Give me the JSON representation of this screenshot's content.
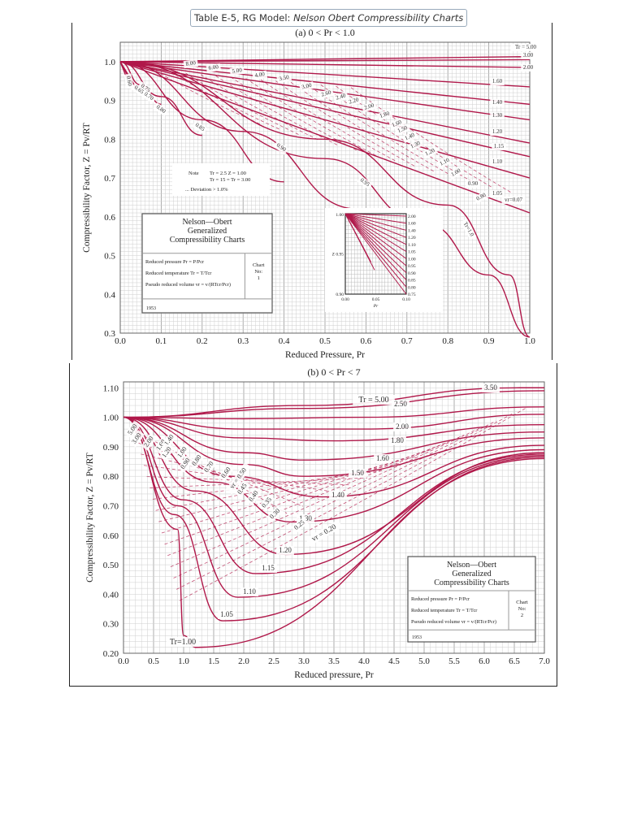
{
  "caption": {
    "prefix": "Table E-5, RG Model: ",
    "title": "Nelson Obert Compressibility Charts"
  },
  "colors": {
    "curve": "#b0184a",
    "grid_minor": "#cfcfcf",
    "grid_major": "#9a9a9a",
    "text": "#222222"
  },
  "chart_data": [
    {
      "type": "line",
      "title": "(a) 0 < Pr < 1.0",
      "xlabel": "Reduced Pressure, Pr",
      "ylabel": "Compressibility Factor, Z = Pv/RT",
      "xlim": [
        0.0,
        1.0
      ],
      "ylim": [
        0.3,
        1.05
      ],
      "xticks": [
        "0.0",
        "0.1",
        "0.2",
        "0.3",
        "0.4",
        "0.5",
        "0.6",
        "0.7",
        "0.8",
        "0.9",
        "1.0"
      ],
      "yticks": [
        "0.3",
        "0.4",
        "0.5",
        "0.6",
        "0.7",
        "0.8",
        "0.9",
        "1.0"
      ],
      "grid": true,
      "series_label": "Tr",
      "series": [
        {
          "name": "5.00",
          "x": [
            0,
            1.0
          ],
          "y": [
            1.0,
            1.013
          ]
        },
        {
          "name": "3.00",
          "x": [
            0,
            1.0
          ],
          "y": [
            1.0,
            1.005
          ]
        },
        {
          "name": "2.00",
          "x": [
            0,
            1.0
          ],
          "y": [
            1.0,
            0.985
          ]
        },
        {
          "name": "1.60",
          "x": [
            0,
            1.0
          ],
          "y": [
            1.0,
            0.935
          ]
        },
        {
          "name": "1.40",
          "x": [
            0,
            1.0
          ],
          "y": [
            1.0,
            0.89
          ]
        },
        {
          "name": "1.30",
          "x": [
            0,
            1.0
          ],
          "y": [
            1.0,
            0.85
          ]
        },
        {
          "name": "1.20",
          "x": [
            0,
            1.0
          ],
          "y": [
            1.0,
            0.79
          ]
        },
        {
          "name": "1.15",
          "x": [
            0,
            1.0
          ],
          "y": [
            1.0,
            0.755
          ]
        },
        {
          "name": "1.10",
          "x": [
            0,
            1.0
          ],
          "y": [
            1.0,
            0.7
          ]
        },
        {
          "name": "1.05",
          "x": [
            0,
            1.0
          ],
          "y": [
            1.0,
            0.61
          ]
        },
        {
          "name": "1.00",
          "x": [
            0,
            0.5,
            0.8,
            0.95,
            1.0
          ],
          "y": [
            1.0,
            0.8,
            0.63,
            0.45,
            0.29
          ]
        },
        {
          "name": "0.95",
          "x": [
            0,
            0.5,
            0.75,
            0.9,
            1.0
          ],
          "y": [
            1.0,
            0.75,
            0.58,
            0.45,
            0.29
          ]
        },
        {
          "name": "0.90",
          "x": [
            0,
            0.3,
            0.58
          ],
          "y": [
            1.0,
            0.82,
            0.62
          ]
        },
        {
          "name": "0.85",
          "x": [
            0,
            0.2,
            0.4
          ],
          "y": [
            1.0,
            0.85,
            0.69
          ]
        },
        {
          "name": "0.80",
          "x": [
            0,
            0.1,
            0.2
          ],
          "y": [
            1.0,
            0.91,
            0.81
          ]
        },
        {
          "name": "0.75",
          "x": [
            0,
            0.05,
            0.1
          ],
          "y": [
            1.0,
            0.94,
            0.89
          ]
        },
        {
          "name": "0.70",
          "x": [
            0,
            0.04
          ],
          "y": [
            1.0,
            0.93
          ]
        },
        {
          "name": "0.65",
          "x": [
            0,
            0.025
          ],
          "y": [
            1.0,
            0.95
          ]
        },
        {
          "name": "0.60",
          "x": [
            0,
            0.015
          ],
          "y": [
            1.0,
            0.96
          ]
        }
      ],
      "curve_labels": [
        "8.00",
        "6.00",
        "5.00",
        "4.00",
        "3.50",
        "3.00",
        "2.60",
        "2.40",
        "2.20",
        "2.00",
        "1.80",
        "1.60",
        "1.50",
        "1.40",
        "1.30",
        "1.20",
        "1.10",
        "1.00",
        "0.90",
        "0.80",
        "vr = 0.07",
        "Tr = 1.0",
        "0.95",
        "0.90",
        "0.85",
        "0.80",
        "0.75",
        "0.70",
        "0.65",
        "0.60",
        "Tr = 5.00",
        "3.00",
        "2.00",
        "1.60",
        "1.40",
        "1.30",
        "1.20",
        "1.15",
        "1.10",
        "1.05"
      ],
      "note": {
        "label": "Note",
        "line1": "Tr = 2.5    Z = 1.00",
        "line2": "Tr = 15  =  Tr = 3.00",
        "line3": "... Deviation > 1.0%"
      },
      "info_box": {
        "title1": "Nelson—Obert",
        "title2": "Generalized",
        "title3": "Compressibility Charts",
        "row1": "Reduced pressure Pr = P/Pcr",
        "row2": "Reduced temperature Tr = T/Tcr",
        "row3": "Pseudo reduced volume vr = v/(RTcr/Pcr)",
        "chart_label": "Chart",
        "chart_no_label": "No:",
        "chart_no": "1",
        "year": "1953"
      },
      "inset": {
        "xlim": [
          0.0,
          0.1
        ],
        "ylim": [
          0.9,
          1.0
        ],
        "xticks": [
          "0.00",
          "0.05",
          "0.10"
        ],
        "yticks": [
          "0.90",
          "Z 0.95",
          "1.00"
        ],
        "xlabel": "Pr",
        "right_labels": [
          "2.00",
          "1.60",
          "1.40",
          "1.20",
          "1.10",
          "1.05",
          "1.00",
          "0.95",
          "0.90",
          "0.85",
          "0.80",
          "0.75"
        ],
        "vr_labels": [
          "30",
          "20",
          "15",
          "12",
          "10",
          "0.60",
          "0.65",
          "0.70"
        ]
      }
    },
    {
      "type": "line",
      "title": "(b) 0 < Pr < 7",
      "xlabel": "Reduced pressure, Pr",
      "ylabel": "Compressibility Factor, Z = Pv/RT",
      "xlim": [
        0.0,
        7.0
      ],
      "ylim": [
        0.2,
        1.12
      ],
      "xticks": [
        "0.0",
        "0.5",
        "1.0",
        "1.5",
        "2.0",
        "2.5",
        "3.0",
        "3.5",
        "4.0",
        "4.5",
        "5.0",
        "5.5",
        "6.0",
        "6.5",
        "7.0"
      ],
      "yticks": [
        "0.20",
        "0.30",
        "0.40",
        "0.50",
        "0.60",
        "0.70",
        "0.80",
        "0.90",
        "1.00",
        "1.10"
      ],
      "grid": true,
      "series_label": "Tr",
      "series": [
        {
          "name": "3.50",
          "x": [
            0,
            3.0,
            6.6,
            7.0
          ],
          "y": [
            1.0,
            1.04,
            1.1,
            1.1
          ]
        },
        {
          "name": "5.00",
          "x": [
            0,
            3.0,
            7.0
          ],
          "y": [
            1.0,
            1.03,
            1.09
          ]
        },
        {
          "name": "2.50",
          "x": [
            0,
            2.0,
            4.0,
            7.0
          ],
          "y": [
            1.0,
            0.995,
            1.0,
            1.035
          ]
        },
        {
          "name": "2.00",
          "x": [
            0,
            2.0,
            4.0,
            7.0
          ],
          "y": [
            1.0,
            0.96,
            0.96,
            1.01
          ]
        },
        {
          "name": "1.80",
          "x": [
            0,
            2.0,
            3.5,
            7.0
          ],
          "y": [
            1.0,
            0.93,
            0.92,
            0.975
          ]
        },
        {
          "name": "1.60",
          "x": [
            0,
            2.0,
            3.0,
            7.0
          ],
          "y": [
            1.0,
            0.88,
            0.855,
            0.95
          ]
        },
        {
          "name": "1.50",
          "x": [
            0,
            2.0,
            3.0,
            7.0
          ],
          "y": [
            1.0,
            0.84,
            0.8,
            0.93
          ]
        },
        {
          "name": "1.40",
          "x": [
            0,
            1.8,
            3.3,
            7.0
          ],
          "y": [
            1.0,
            0.8,
            0.73,
            0.905
          ]
        },
        {
          "name": "1.30",
          "x": [
            0,
            1.5,
            2.8,
            7.0
          ],
          "y": [
            1.0,
            0.78,
            0.645,
            0.89
          ]
        },
        {
          "name": "1.20",
          "x": [
            0,
            1.2,
            2.7,
            7.0
          ],
          "y": [
            1.0,
            0.75,
            0.535,
            0.88
          ]
        },
        {
          "name": "1.15",
          "x": [
            0,
            1.0,
            2.2,
            7.0
          ],
          "y": [
            1.0,
            0.72,
            0.47,
            0.875
          ]
        },
        {
          "name": "1.10",
          "x": [
            0,
            0.9,
            1.9,
            7.0
          ],
          "y": [
            1.0,
            0.7,
            0.39,
            0.87
          ]
        },
        {
          "name": "1.05",
          "x": [
            0,
            0.85,
            1.65,
            7.0
          ],
          "y": [
            1.0,
            0.67,
            0.31,
            0.865
          ]
        },
        {
          "name": "1.00",
          "x": [
            0,
            0.9,
            1.0,
            1.2,
            7.0
          ],
          "y": [
            1.0,
            0.62,
            0.26,
            0.22,
            0.86
          ]
        }
      ],
      "curve_labels": [
        "Tr = 5.00",
        "3.50",
        "2.50",
        "2.00",
        "1.80",
        "1.60",
        "1.50",
        "1.40",
        "1.30",
        "1.20",
        "1.15",
        "1.10",
        "1.05",
        "Tr = 1.00",
        "5.00",
        "3.00",
        "2.00",
        "1.60",
        "1.40",
        "1.20",
        "1.00",
        "0.90",
        "0.80",
        "0.70",
        "0.60",
        "vr = 0.50",
        "0.45",
        "0.40",
        "0.35",
        "0.30",
        "0.25",
        "vr = 0.20"
      ],
      "info_box": {
        "title1": "Nelson—Obert",
        "title2": "Generalized",
        "title3": "Compressibility Charts",
        "row1": "Reduced pressure Pr = P/Pcr",
        "row2": "Reduced temperature Tr = T/Tcr",
        "row3": "Pseudo reduced volume vr = v/(RTcr/Pcr)",
        "chart_label": "Chart",
        "chart_no_label": "No:",
        "chart_no": "2",
        "year": "1953"
      }
    }
  ]
}
